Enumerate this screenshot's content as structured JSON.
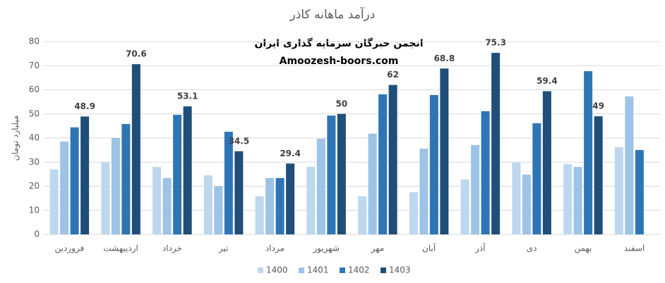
{
  "chart_data": {
    "type": "bar",
    "title": "درآمد ماهانه کاذر",
    "annotations": [
      "انجمن خبرگان سرمایه گذاری ایران",
      "Amoozesh-boors.com"
    ],
    "y_label": "میلیارد تومان",
    "categories": [
      "فروردین",
      "اردیبهشت",
      "خرداد",
      "تیر",
      "مرداد",
      "شهریور",
      "مهر",
      "آبان",
      "آذر",
      "دی",
      "بهمن",
      "اسفند"
    ],
    "series": [
      {
        "name": "1400",
        "color": "#bdd7ee",
        "values": [
          27,
          30,
          28,
          24.5,
          15.8,
          28,
          15.8,
          17.5,
          22.8,
          29.8,
          29.2,
          36.2
        ]
      },
      {
        "name": "1401",
        "color": "#9dc3e6",
        "values": [
          38.5,
          40,
          23.4,
          20,
          23.4,
          39.7,
          41.8,
          35.6,
          37.1,
          24.8,
          28,
          57.2
        ]
      },
      {
        "name": "1402",
        "color": "#2e75b6",
        "values": [
          44.4,
          45.8,
          49.6,
          42.6,
          23.4,
          49.3,
          58.1,
          57.8,
          51.1,
          46.1,
          67.7,
          35
        ]
      },
      {
        "name": "1403",
        "color": "#1f4e79",
        "values": [
          48.9,
          70.6,
          53.1,
          34.5,
          29.4,
          50,
          62,
          68.8,
          75.3,
          59.4,
          49,
          null
        ],
        "data_labels": true
      }
    ],
    "ylim": [
      0,
      80
    ],
    "yticks": [
      0,
      10,
      20,
      30,
      40,
      50,
      60,
      70,
      80
    ],
    "grid": true,
    "legend": "bottom"
  }
}
